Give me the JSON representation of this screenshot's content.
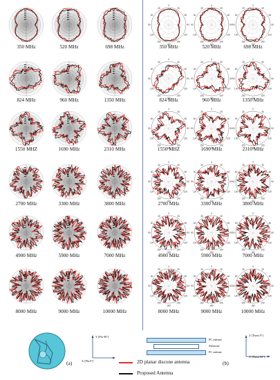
{
  "left_panel": {
    "label": "(a)",
    "frequencies": [
      "350 MHz",
      "520 MHz",
      "698 MHz",
      "824 MHz",
      "960 MHz",
      "1350 MHz",
      "1550 MHZ",
      "1690 MHz",
      "2310 MHz",
      "2700 MHz",
      "3300 MHz",
      "3800 MHz",
      "4900 MHz",
      "5900 MHz",
      "7000 MHz",
      "8000 MHz",
      "9000 MHz",
      "10000 MHz"
    ],
    "axes": {
      "y_label": "Y [Phi 90°]",
      "x_label": "X [Phi 0°]"
    }
  },
  "right_panel": {
    "label": "(b)",
    "frequencies": [
      "350 MHz",
      "520 MHz",
      "698 MHz",
      "824 MHz",
      "960 MHz",
      "1350 MHz",
      "1550 MHZ",
      "1690 MHz",
      "2310 MHz",
      "2700 MHz",
      "3300 MHz",
      "3800 MHz",
      "4900 MHz",
      "5900 MHz",
      "7000 MHz",
      "8000 MHz",
      "9000 MHz",
      "10000 MHz"
    ],
    "angle_labels": [
      "0",
      "30",
      "60",
      "90",
      "120",
      "150",
      "180",
      "150",
      "120",
      "90",
      "60",
      "30"
    ],
    "axes": {
      "z_label": "Z [Theta 0°]",
      "y_label": "Y [Theta 90°]"
    },
    "layers": [
      "PC radome",
      "Substrate",
      "PC radome"
    ]
  },
  "legend": {
    "items": [
      {
        "label": "2D planar discone antenna",
        "color": "#d9302a"
      },
      {
        "label": "Proposed Antenna",
        "color": "#111111"
      }
    ]
  },
  "colors": {
    "divider": "#6d86b8",
    "red": "#d9302a",
    "black": "#111111",
    "grid": "#9a9a9a",
    "fill_light": "#f2f2f2",
    "fill_dark": "#9e9e9e",
    "antenna": "#57c6d8"
  }
}
